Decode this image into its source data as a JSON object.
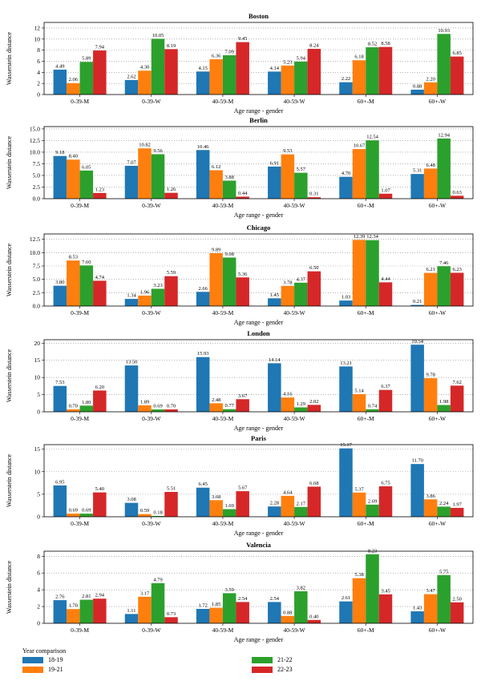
{
  "legend": {
    "title": "Year comparison",
    "items": [
      {
        "label": "18-19",
        "color": "#1f77b4"
      },
      {
        "label": "19-21",
        "color": "#ff7f0e"
      },
      {
        "label": "21-22",
        "color": "#2ca02c"
      },
      {
        "label": "22-23",
        "color": "#d62728"
      }
    ]
  },
  "chart_data": [
    {
      "type": "bar",
      "title": "Boston",
      "categories": [
        "0-39-M",
        "0-39-W",
        "40-59-M",
        "40-59-W",
        "60+-M",
        "60+-W"
      ],
      "xlabel": "Age range - gender",
      "ylabel": "Wasserstein distance",
      "ylim": [
        0,
        13
      ],
      "yticks": [
        0,
        2,
        4,
        6,
        8,
        10,
        12
      ],
      "tick_labels": [
        "0",
        "2",
        "4",
        "6",
        "8",
        "10",
        "12"
      ],
      "grid": true,
      "series": [
        {
          "name": "18-19",
          "values": [
            4.49,
            2.62,
            4.15,
            4.14,
            2.22,
            0.88
          ],
          "labels": [
            "4.49",
            "2.62",
            "4.15",
            "4.14",
            "2.22",
            "0.88"
          ]
        },
        {
          "name": "19-21",
          "values": [
            2.06,
            4.3,
            6.36,
            5.23,
            6.18,
            2.2
          ],
          "labels": [
            "2.06",
            "4.30",
            "6.36",
            "5.23",
            "6.18",
            "2.20"
          ]
        },
        {
          "name": "21-22",
          "values": [
            5.89,
            10.05,
            7.09,
            5.94,
            8.52,
            10.93
          ],
          "labels": [
            "5.89",
            "10.05",
            "7.09",
            "5.94",
            "8.52",
            "10.93"
          ]
        },
        {
          "name": "22-23",
          "values": [
            7.94,
            8.19,
            9.45,
            8.24,
            8.58,
            6.85
          ],
          "labels": [
            "7.94",
            "8.19",
            "9.45",
            "8.24",
            "8.58",
            "6.85"
          ]
        }
      ]
    },
    {
      "type": "bar",
      "title": "Berlin",
      "categories": [
        "0-39-M",
        "0-39-W",
        "40-59-M",
        "40-59-W",
        "60+-M",
        "60+-W"
      ],
      "xlabel": "Age range - gender",
      "ylabel": "Wasserstein distance",
      "ylim": [
        0,
        15.5
      ],
      "yticks": [
        0,
        2.5,
        5,
        7.5,
        10,
        12.5,
        15
      ],
      "tick_labels": [
        "0.0",
        "2.5",
        "5.0",
        "7.5",
        "10.0",
        "12.5",
        "15.0"
      ],
      "grid": true,
      "series": [
        {
          "name": "18-19",
          "values": [
            9.18,
            7.07,
            10.46,
            6.91,
            4.7,
            5.31
          ],
          "labels": [
            "9.18",
            "7.07",
            "10.46",
            "6.91",
            "4.70",
            "5.31"
          ]
        },
        {
          "name": "19-21",
          "values": [
            8.4,
            10.82,
            6.12,
            9.53,
            10.67,
            6.48
          ],
          "labels": [
            "8.40",
            "10.82",
            "6.12",
            "9.53",
            "10.67",
            "6.48"
          ]
        },
        {
          "name": "21-22",
          "values": [
            6.05,
            9.56,
            3.88,
            5.57,
            12.54,
            12.94
          ],
          "labels": [
            "6.05",
            "9.56",
            "3.88",
            "5.57",
            "12.54",
            "12.94"
          ]
        },
        {
          "name": "22-23",
          "values": [
            1.23,
            1.26,
            0.44,
            0.31,
            1.07,
            0.63
          ],
          "labels": [
            "1.23",
            "1.26",
            "0.44",
            "0.31",
            "1.07",
            "0.63"
          ]
        }
      ]
    },
    {
      "type": "bar",
      "title": "Chicago",
      "categories": [
        "0-39-M",
        "0-39-W",
        "40-59-M",
        "40-59-W",
        "60+-M",
        "60+-W"
      ],
      "xlabel": "Age range - gender",
      "ylabel": "Wasserstein distance",
      "ylim": [
        0,
        13.5
      ],
      "yticks": [
        0,
        2.5,
        5,
        7.5,
        10,
        12.5
      ],
      "tick_labels": [
        "0.0",
        "2.5",
        "5.0",
        "7.5",
        "10.0",
        "12.5"
      ],
      "grid": true,
      "series": [
        {
          "name": "18-19",
          "values": [
            3.8,
            1.34,
            2.66,
            1.45,
            1.03,
            0.21
          ],
          "labels": [
            "3.80",
            "1.34",
            "2.66",
            "1.45",
            "1.03",
            "0.21"
          ]
        },
        {
          "name": "19-21",
          "values": [
            8.53,
            1.96,
            9.89,
            3.78,
            12.39,
            6.21
          ],
          "labels": [
            "8.53",
            "1.96",
            "9.89",
            "3.78",
            "12.39",
            "6.21"
          ]
        },
        {
          "name": "21-22",
          "values": [
            7.6,
            3.23,
            9.08,
            4.37,
            12.34,
            7.46
          ],
          "labels": [
            "7.60",
            "3.23",
            "9.08",
            "4.37",
            "12.34",
            "7.46"
          ]
        },
        {
          "name": "22-23",
          "values": [
            4.74,
            5.59,
            5.36,
            6.5,
            4.44,
            6.23
          ],
          "labels": [
            "4.74",
            "5.59",
            "5.36",
            "6.50",
            "4.44",
            "6.23"
          ]
        }
      ]
    },
    {
      "type": "bar",
      "title": "London",
      "categories": [
        "0-39-M",
        "0-39-W",
        "40-59-M",
        "40-59-W",
        "60+-M",
        "60+-W"
      ],
      "xlabel": "Age range - gender",
      "ylabel": "Wasserstein distance",
      "ylim": [
        0,
        21
      ],
      "yticks": [
        0,
        5,
        10,
        15,
        20
      ],
      "tick_labels": [
        "0",
        "5",
        "10",
        "15",
        "20"
      ],
      "grid": true,
      "series": [
        {
          "name": "18-19",
          "values": [
            7.53,
            13.5,
            15.93,
            14.14,
            13.21,
            19.54
          ],
          "labels": [
            "7.53",
            "13.50",
            "15.93",
            "14.14",
            "13.21",
            "19.54"
          ]
        },
        {
          "name": "19-21",
          "values": [
            0.7,
            1.89,
            2.48,
            4.16,
            5.14,
            9.78
          ],
          "labels": [
            "0.70",
            "1.89",
            "2.48",
            "4.16",
            "5.14",
            "9.78"
          ]
        },
        {
          "name": "21-22",
          "values": [
            1.8,
            0.69,
            0.77,
            1.29,
            0.74,
            1.98
          ],
          "labels": [
            "1.80",
            "0.69",
            "0.77",
            "1.29",
            "0.74",
            "1.98"
          ]
        },
        {
          "name": "22-23",
          "values": [
            6.2,
            0.7,
            3.67,
            2.02,
            6.37,
            7.62
          ],
          "labels": [
            "6.20",
            "0.70",
            "3.67",
            "2.02",
            "6.37",
            "7.62"
          ]
        }
      ]
    },
    {
      "type": "bar",
      "title": "Paris",
      "categories": [
        "0-39-M",
        "0-39-W",
        "40-59-M",
        "40-59-W",
        "60+-M",
        "60+-W"
      ],
      "xlabel": "Age range - gender",
      "ylabel": "Wasserstein distance",
      "ylim": [
        0,
        16
      ],
      "yticks": [
        0,
        5,
        10,
        15
      ],
      "tick_labels": [
        "0",
        "5",
        "10",
        "15"
      ],
      "grid": true,
      "series": [
        {
          "name": "18-19",
          "values": [
            6.95,
            3.08,
            6.45,
            2.28,
            15.17,
            11.7
          ],
          "labels": [
            "6.95",
            "3.08",
            "6.45",
            "2.28",
            "15.17",
            "11.70"
          ]
        },
        {
          "name": "19-21",
          "values": [
            0.69,
            0.59,
            3.68,
            4.64,
            5.37,
            3.86
          ],
          "labels": [
            "0.69",
            "0.59",
            "3.68",
            "4.64",
            "5.37",
            "3.86"
          ]
        },
        {
          "name": "21-22",
          "values": [
            0.69,
            0.18,
            1.69,
            2.17,
            2.69,
            2.24
          ],
          "labels": [
            "0.69",
            "0.18",
            "1.69",
            "2.17",
            "2.69",
            "2.24"
          ]
        },
        {
          "name": "22-23",
          "values": [
            5.4,
            5.51,
            5.67,
            6.68,
            6.75,
            1.97
          ],
          "labels": [
            "5.40",
            "5.51",
            "5.67",
            "6.68",
            "6.75",
            "1.97"
          ]
        }
      ]
    },
    {
      "type": "bar",
      "title": "Valencia",
      "categories": [
        "0-39-M",
        "0-39-W",
        "40-59-M",
        "40-59-W",
        "60+-M",
        "60+-W"
      ],
      "xlabel": "Age range - gender",
      "ylabel": "Wasserstein distance",
      "ylim": [
        0,
        8.6
      ],
      "yticks": [
        0,
        2,
        4,
        6,
        8
      ],
      "tick_labels": [
        "0",
        "2",
        "4",
        "6",
        "8"
      ],
      "grid": true,
      "series": [
        {
          "name": "18-19",
          "values": [
            2.76,
            1.11,
            1.72,
            2.54,
            2.61,
            1.43
          ],
          "labels": [
            "2.76",
            "1.11",
            "1.72",
            "2.54",
            "2.61",
            "1.43"
          ]
        },
        {
          "name": "19-21",
          "values": [
            1.7,
            3.17,
            1.85,
            0.88,
            5.38,
            3.47
          ],
          "labels": [
            "1.70",
            "3.17",
            "1.85",
            "0.88",
            "5.38",
            "3.47"
          ]
        },
        {
          "name": "21-22",
          "values": [
            2.81,
            4.79,
            3.59,
            3.82,
            8.23,
            5.75
          ],
          "labels": [
            "2.81",
            "4.79",
            "3.59",
            "3.82",
            "8.23",
            "5.75"
          ]
        },
        {
          "name": "22-23",
          "values": [
            2.94,
            0.73,
            2.54,
            0.4,
            3.45,
            2.5
          ],
          "labels": [
            "2.94",
            "0.73",
            "2.54",
            "0.40",
            "3.45",
            "2.50"
          ]
        }
      ]
    }
  ]
}
